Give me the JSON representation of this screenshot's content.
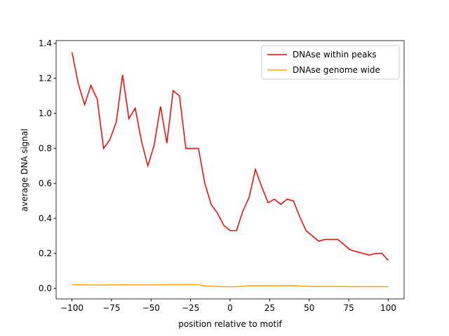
{
  "chart_data": {
    "type": "line",
    "xlabel": "position relative to motif",
    "ylabel": "average DNA signal",
    "x": [
      -100,
      -96,
      -92,
      -88,
      -84,
      -80,
      -76,
      -72,
      -68,
      -64,
      -60,
      -56,
      -52,
      -48,
      -44,
      -40,
      -36,
      -32,
      -28,
      -24,
      -20,
      -16,
      -12,
      -8,
      -4,
      0,
      4,
      8,
      12,
      16,
      20,
      24,
      28,
      32,
      36,
      40,
      44,
      48,
      52,
      56,
      60,
      64,
      68,
      72,
      76,
      80,
      84,
      88,
      92,
      96,
      100
    ],
    "series": [
      {
        "name": "DNAse within peaks",
        "color": "#ff0000",
        "values": [
          1.35,
          1.17,
          1.05,
          1.16,
          1.08,
          0.8,
          0.85,
          0.95,
          1.22,
          0.97,
          1.03,
          0.84,
          0.7,
          0.82,
          1.04,
          0.83,
          1.13,
          1.1,
          0.8,
          0.8,
          0.8,
          0.6,
          0.48,
          0.43,
          0.36,
          0.33,
          0.33,
          0.44,
          0.52,
          0.68,
          0.58,
          0.49,
          0.51,
          0.48,
          0.51,
          0.5,
          0.41,
          0.33,
          0.3,
          0.27,
          0.28,
          0.28,
          0.28,
          0.25,
          0.22,
          0.21,
          0.2,
          0.19,
          0.2,
          0.2,
          0.16
        ]
      },
      {
        "name": "DNAse genome wide",
        "color": "#ffa500",
        "values": [
          0.021,
          0.021,
          0.02,
          0.02,
          0.019,
          0.019,
          0.02,
          0.02,
          0.021,
          0.02,
          0.02,
          0.02,
          0.02,
          0.02,
          0.021,
          0.021,
          0.022,
          0.022,
          0.022,
          0.022,
          0.021,
          0.015,
          0.012,
          0.011,
          0.01,
          0.009,
          0.01,
          0.012,
          0.015,
          0.016,
          0.016,
          0.015,
          0.015,
          0.016,
          0.016,
          0.016,
          0.014,
          0.012,
          0.011,
          0.011,
          0.011,
          0.011,
          0.011,
          0.011,
          0.01,
          0.01,
          0.01,
          0.01,
          0.01,
          0.01,
          0.01
        ]
      }
    ],
    "xlim": [
      -110,
      110
    ],
    "xticks": [
      {
        "value": -100,
        "label": "−100"
      },
      {
        "value": -75,
        "label": "−75"
      },
      {
        "value": -50,
        "label": "−50"
      },
      {
        "value": -25,
        "label": "−25"
      },
      0,
      25,
      50,
      75,
      100
    ],
    "ylim": [
      -0.06,
      1.416
    ],
    "yticks": [
      {
        "value": 0,
        "label": "0.0"
      },
      0.2,
      0.4,
      0.6,
      0.8,
      {
        "value": 1,
        "label": "1.0"
      },
      1.2,
      1.4
    ],
    "legend": "upper right"
  }
}
